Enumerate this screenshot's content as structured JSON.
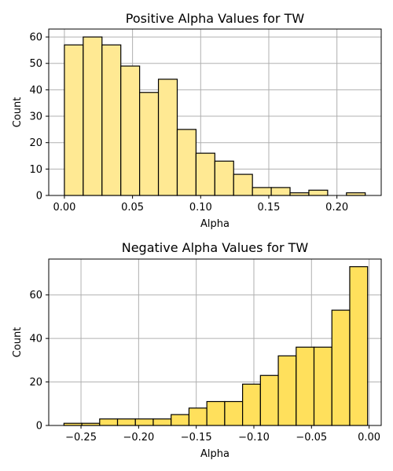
{
  "chart_data": [
    {
      "type": "bar",
      "title": "Positive Alpha Values for TW",
      "xlabel": "Alpha",
      "ylabel": "Count",
      "bar_color": "#ffe993",
      "grid": true,
      "xlim": [
        -0.0115,
        0.2325
      ],
      "ylim": [
        0,
        63
      ],
      "xticks": [
        0.0,
        0.05,
        0.1,
        0.15,
        0.2
      ],
      "xtick_labels": [
        "0.00",
        "0.05",
        "0.10",
        "0.15",
        "0.20"
      ],
      "yticks": [
        0,
        10,
        20,
        30,
        40,
        50,
        60
      ],
      "ytick_labels": [
        "0",
        "10",
        "20",
        "30",
        "40",
        "50",
        "60"
      ],
      "bins": [
        {
          "x0": 0.0,
          "x1": 0.0138,
          "count": 57
        },
        {
          "x0": 0.0138,
          "x1": 0.0276,
          "count": 60
        },
        {
          "x0": 0.0276,
          "x1": 0.0414,
          "count": 57
        },
        {
          "x0": 0.0414,
          "x1": 0.0552,
          "count": 49
        },
        {
          "x0": 0.0552,
          "x1": 0.069,
          "count": 39
        },
        {
          "x0": 0.069,
          "x1": 0.0828,
          "count": 44
        },
        {
          "x0": 0.0828,
          "x1": 0.0966,
          "count": 25
        },
        {
          "x0": 0.0966,
          "x1": 0.1104,
          "count": 16
        },
        {
          "x0": 0.1104,
          "x1": 0.1242,
          "count": 13
        },
        {
          "x0": 0.1242,
          "x1": 0.138,
          "count": 8
        },
        {
          "x0": 0.138,
          "x1": 0.1518,
          "count": 3
        },
        {
          "x0": 0.1518,
          "x1": 0.1656,
          "count": 3
        },
        {
          "x0": 0.1656,
          "x1": 0.1794,
          "count": 1
        },
        {
          "x0": 0.1794,
          "x1": 0.1932,
          "count": 2
        },
        {
          "x0": 0.1932,
          "x1": 0.207,
          "count": 0
        },
        {
          "x0": 0.207,
          "x1": 0.2208,
          "count": 1
        }
      ]
    },
    {
      "type": "bar",
      "title": "Negative Alpha Values for TW",
      "xlabel": "Alpha",
      "ylabel": "Count",
      "bar_color": "#ffe05c",
      "grid": true,
      "xlim": [
        -0.278,
        0.0105
      ],
      "ylim": [
        0,
        76.5
      ],
      "xticks": [
        -0.25,
        -0.2,
        -0.15,
        -0.1,
        -0.05,
        0.0
      ],
      "xtick_labels": [
        "−0.25",
        "−0.20",
        "−0.15",
        "−0.10",
        "−0.05",
        "0.00"
      ],
      "yticks": [
        0,
        20,
        40,
        60
      ],
      "ytick_labels": [
        "0",
        "20",
        "40",
        "60"
      ],
      "bins": [
        {
          "x0": -0.2648,
          "x1": -0.2493,
          "count": 1
        },
        {
          "x0": -0.2493,
          "x1": -0.2338,
          "count": 1
        },
        {
          "x0": -0.2338,
          "x1": -0.2183,
          "count": 3
        },
        {
          "x0": -0.2183,
          "x1": -0.2028,
          "count": 3
        },
        {
          "x0": -0.2028,
          "x1": -0.1873,
          "count": 3
        },
        {
          "x0": -0.1873,
          "x1": -0.1718,
          "count": 3
        },
        {
          "x0": -0.1718,
          "x1": -0.1563,
          "count": 5
        },
        {
          "x0": -0.1563,
          "x1": -0.1408,
          "count": 8
        },
        {
          "x0": -0.1408,
          "x1": -0.1253,
          "count": 11
        },
        {
          "x0": -0.1253,
          "x1": -0.1098,
          "count": 11
        },
        {
          "x0": -0.1098,
          "x1": -0.0943,
          "count": 19
        },
        {
          "x0": -0.0943,
          "x1": -0.0788,
          "count": 23
        },
        {
          "x0": -0.0788,
          "x1": -0.0633,
          "count": 32
        },
        {
          "x0": -0.0633,
          "x1": -0.0478,
          "count": 36
        },
        {
          "x0": -0.0478,
          "x1": -0.0323,
          "count": 36
        },
        {
          "x0": -0.0323,
          "x1": -0.0168,
          "count": 53
        },
        {
          "x0": -0.0168,
          "x1": -0.0013,
          "count": 73
        }
      ]
    }
  ]
}
